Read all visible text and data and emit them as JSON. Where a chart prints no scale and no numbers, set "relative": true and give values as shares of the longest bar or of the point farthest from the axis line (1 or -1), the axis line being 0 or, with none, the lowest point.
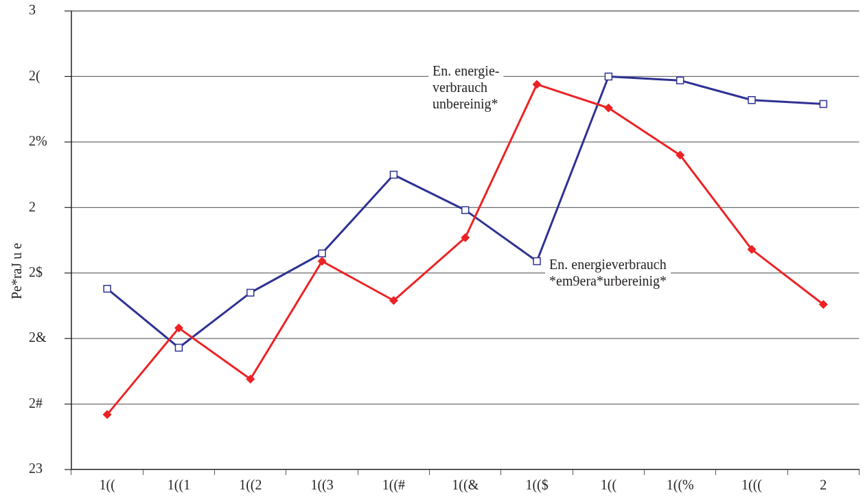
{
  "chart_data": {
    "type": "line",
    "ylabel": "Pe*raJ u e",
    "relative": true,
    "categories": [
      "1((",
      "1((1",
      "1((2",
      "1((3",
      "1((#",
      "1((&",
      "1(($",
      "1((",
      "1((%",
      "1(((",
      "2"
    ],
    "series": [
      {
        "name": "En. energieverbrauch *em9era*urbereinig*",
        "color": "#2e3192",
        "marker": "square",
        "values": [
          0.46,
          0.31,
          0.45,
          0.55,
          0.75,
          0.66,
          0.53,
          1,
          0.99,
          0.94,
          0.93
        ]
      },
      {
        "name": "En. energie- verbrauch unbereinig*",
        "color": "#ed2224",
        "marker": "diamond",
        "values": [
          0.14,
          0.36,
          0.23,
          0.53,
          0.43,
          0.59,
          0.98,
          0.92,
          0.8,
          0.56,
          0.42
        ]
      }
    ],
    "annotations": [
      "23",
      "2#",
      "2&",
      "2$",
      "2",
      "2%",
      "2(",
      "3"
    ],
    "grid": "y",
    "legend": false,
    "line_style": "solid"
  }
}
